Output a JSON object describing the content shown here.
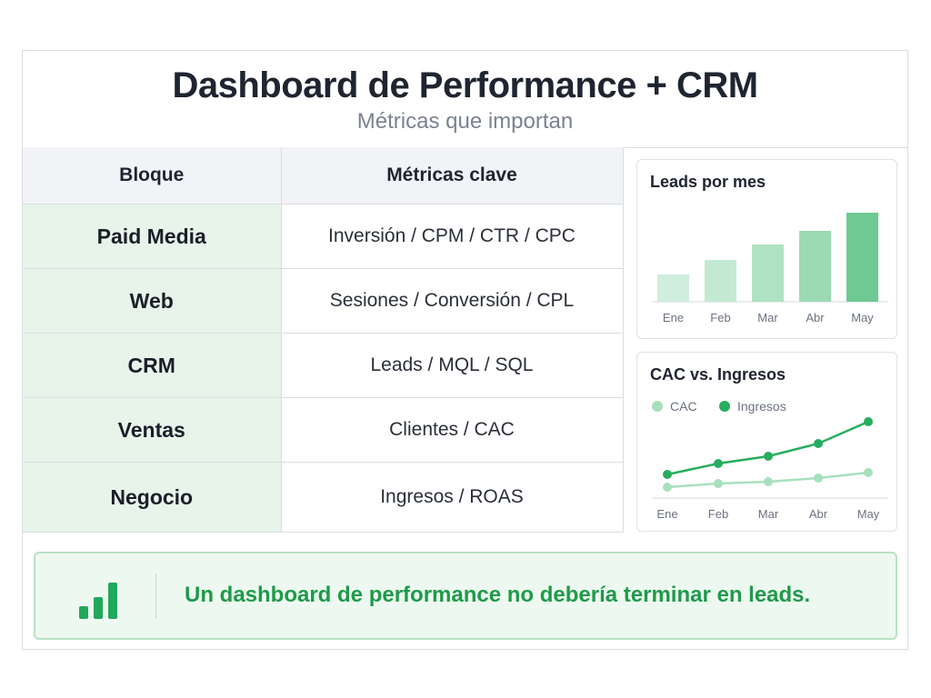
{
  "header": {
    "title": "Dashboard de Performance + CRM",
    "subtitle": "Métricas que importan"
  },
  "table": {
    "headers": [
      "Bloque",
      "Métricas clave"
    ],
    "rows": [
      {
        "block": "Paid Media",
        "metrics": "Inversión / CPM / CTR / CPC"
      },
      {
        "block": "Web",
        "metrics": "Sesiones / Conversión / CPL"
      },
      {
        "block": "CRM",
        "metrics": "Leads / MQL / SQL"
      },
      {
        "block": "Ventas",
        "metrics": "Clientes / CAC"
      },
      {
        "block": "Negocio",
        "metrics": "Ingresos / ROAS"
      }
    ]
  },
  "chart_data": [
    {
      "type": "bar",
      "title": "Leads por mes",
      "categories": [
        "Ene",
        "Feb",
        "Mar",
        "Abr",
        "May"
      ],
      "values": [
        30,
        46,
        63,
        78,
        98
      ],
      "ylim": [
        0,
        100
      ],
      "grid": false,
      "colors": [
        "#cfeedd",
        "#c2e9d2",
        "#afe2c3",
        "#9cdab4",
        "#6fc992"
      ]
    },
    {
      "type": "line",
      "title": "CAC vs. Ingresos",
      "categories": [
        "Ene",
        "Feb",
        "Mar",
        "Abr",
        "May"
      ],
      "series": [
        {
          "name": "CAC",
          "values": [
            12,
            16,
            18,
            22,
            28
          ],
          "color": "#a8dfbd"
        },
        {
          "name": "Ingresos",
          "values": [
            26,
            38,
            46,
            60,
            84
          ],
          "color": "#27ad5f"
        }
      ],
      "ylim": [
        0,
        100
      ],
      "grid": false,
      "legend": "top-left"
    }
  ],
  "banner": {
    "text": "Un dashboard de performance no debería terminar en leads.",
    "icon": "bar-chart-icon",
    "color": "#1e9a4a"
  }
}
